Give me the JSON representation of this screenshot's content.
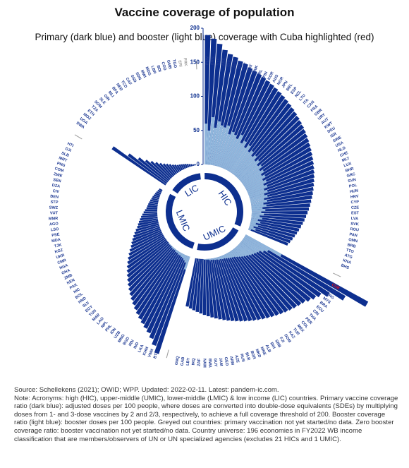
{
  "chart_data": {
    "type": "bar",
    "title": "Vaccine coverage of population",
    "subtitle": "Primary (dark blue) and booster (light blue) coverage with Cuba highlighted (red)",
    "ylim": [
      0,
      200
    ],
    "yticks": [
      "0",
      "50",
      "100",
      "150",
      "200"
    ],
    "colors": {
      "primary": "#0d2f8f",
      "booster": "#8fb6dc",
      "highlight": "#e8101a",
      "label": "#1f3a93",
      "grey": "#9a9a9a",
      "ring": "#0d2f8f"
    },
    "groups": [
      {
        "name": "HIC",
        "countries": [
          "PLW",
          "BRN",
          "SYC",
          "ARE",
          "CHL",
          "SGP",
          "ISL",
          "PRT",
          "QAT",
          "DNK",
          "IRL",
          "FIN",
          "KOR",
          "AUS",
          "NOR",
          "JPN",
          "BEL",
          "ESP",
          "NZL",
          "LTU",
          "ITA",
          "CAN",
          "FRA",
          "GBR",
          "URY",
          "AUT",
          "KWT",
          "DEU",
          "ISR",
          "SWE",
          "USA",
          "NLD",
          "CHE",
          "MLT",
          "LUX",
          "BHR",
          "GRC",
          "SVN",
          "POL",
          "HUN",
          "HRV",
          "CYP",
          "CZE",
          "EST",
          "LVA",
          "SVK",
          "ROU",
          "PAN",
          "OMN",
          "BRB",
          "TTO",
          "ATG",
          "KNA",
          "BHS"
        ]
      },
      {
        "name": "UMIC",
        "countries": [
          "CUB",
          "CHN",
          "ARG",
          "MYS",
          "BRA",
          "ECU",
          "CRI",
          "THA",
          "PER",
          "COL",
          "MEX",
          "TUR",
          "KAZ",
          "DOM",
          "FJI",
          "SRB",
          "BIH",
          "ALB",
          "MNE",
          "MKD",
          "BGR",
          "BLR",
          "RUS",
          "AZE",
          "ARM",
          "GEO",
          "JAM",
          "GUY",
          "BWA",
          "NAM",
          "ZAF",
          "IRQ",
          "LBY",
          "GAB",
          "GNQ"
        ]
      },
      {
        "name": "LMIC",
        "countries": [
          "BTN",
          "VNM",
          "KHM",
          "LKA",
          "IND",
          "IRN",
          "BGD",
          "MNG",
          "UZB",
          "IDN",
          "PHL",
          "NPL",
          "LAO",
          "MAR",
          "TUN",
          "EGY",
          "SLV",
          "HND",
          "BOL",
          "NIC",
          "PAK",
          "KEN",
          "ZMB",
          "GHA",
          "NGA",
          "CMR",
          "UKR",
          "KGZ",
          "TJK",
          "MDA",
          "PSE",
          "LSO",
          "AGO",
          "MMR",
          "VUT",
          "SWZ",
          "STP",
          "BEN",
          "CIV",
          "DZA",
          "SEN",
          "ZWE",
          "COM",
          "PNG",
          "MRT",
          "SLB",
          "DJI",
          "HTI"
        ]
      },
      {
        "name": "LIC",
        "countries": [
          "RWA",
          "UGA",
          "MOZ",
          "ETH",
          "TZA",
          "SOM",
          "SLE",
          "GIN",
          "MLI",
          "BFA",
          "NER",
          "TCD",
          "CAF",
          "SSD",
          "SDN",
          "MWI",
          "MDG",
          "LBR",
          "BDI",
          "COD",
          "GMB",
          "TGO",
          "ERI",
          "PRK"
        ]
      }
    ],
    "primary": {
      "HIC": [
        190,
        185,
        178,
        170,
        165,
        162,
        158,
        156,
        152,
        150,
        148,
        146,
        144,
        142,
        140,
        138,
        136,
        134,
        132,
        130,
        128,
        126,
        124,
        122,
        120,
        118,
        116,
        114,
        112,
        110,
        108,
        106,
        104,
        102,
        100,
        98,
        96,
        94,
        92,
        90,
        88,
        86,
        84,
        82,
        80,
        78,
        76,
        74,
        72,
        70,
        68,
        66,
        64,
        62
      ],
      "UMIC": [
        205,
        172,
        150,
        140,
        136,
        132,
        128,
        126,
        124,
        122,
        120,
        118,
        116,
        114,
        112,
        110,
        108,
        106,
        104,
        102,
        100,
        98,
        96,
        94,
        92,
        90,
        88,
        86,
        84,
        82,
        80,
        78,
        76,
        74,
        72
      ],
      "LMIC": [
        150,
        140,
        132,
        126,
        122,
        118,
        114,
        110,
        106,
        102,
        98,
        94,
        90,
        86,
        82,
        78,
        74,
        70,
        66,
        62,
        58,
        54,
        50,
        47,
        44,
        41,
        38,
        35,
        32,
        30,
        28,
        26,
        24,
        22,
        20,
        18,
        16,
        15,
        14,
        13,
        12,
        11,
        10,
        9,
        8,
        7,
        6,
        5
      ],
      "LIC": [
        95,
        70,
        55,
        45,
        38,
        32,
        27,
        23,
        20,
        17,
        14,
        12,
        10,
        9,
        8,
        7,
        6,
        5,
        4,
        3,
        2,
        2,
        0,
        0
      ]
    },
    "booster": {
      "HIC": [
        60,
        50,
        70,
        55,
        65,
        60,
        58,
        62,
        50,
        55,
        52,
        48,
        56,
        45,
        50,
        42,
        48,
        40,
        44,
        38,
        42,
        36,
        40,
        34,
        38,
        32,
        36,
        30,
        34,
        28,
        32,
        26,
        30,
        24,
        28,
        22,
        26,
        20,
        24,
        18,
        22,
        16,
        20,
        14,
        18,
        12,
        16,
        10,
        14,
        8,
        12,
        6,
        10,
        4
      ],
      "UMIC": [
        60,
        40,
        35,
        30,
        28,
        26,
        24,
        22,
        20,
        18,
        16,
        14,
        12,
        10,
        9,
        8,
        7,
        6,
        5,
        5,
        4,
        4,
        3,
        3,
        2,
        2,
        2,
        1,
        1,
        1,
        0,
        0,
        0,
        0,
        0
      ],
      "LMIC": [
        20,
        10,
        8,
        6,
        5,
        4,
        4,
        3,
        3,
        2,
        2,
        2,
        1,
        1,
        1,
        0,
        0,
        0,
        0,
        0,
        0,
        0,
        0,
        0,
        0,
        0,
        0,
        0,
        0,
        0,
        0,
        0,
        0,
        0,
        0,
        0,
        0,
        0,
        0,
        0,
        0,
        0,
        0,
        0,
        0,
        0,
        0,
        0
      ],
      "LIC": [
        0,
        0,
        0,
        0,
        0,
        0,
        0,
        0,
        0,
        0,
        0,
        0,
        0,
        0,
        0,
        0,
        0,
        0,
        0,
        0,
        0,
        0,
        0,
        0
      ]
    },
    "highlight": "CUB",
    "greyed": [
      "ERI",
      "PRK"
    ]
  },
  "note": {
    "source": "Source: Schellekens (2021); OWID; WPP. Updated: 2022-02-11. Latest: pandem-ic.com.",
    "text": "Note: Acronyms: high (HIC), upper-middle (UMIC), lower-middle (LMIC) & low income (LIC) countries. Primary vaccine coverage ratio (dark blue): adjusted doses per 100 people, where doses are converted into double-dose equivalents (SDEs) by multiplying doses from 1- and 3-dose vaccines by 2 and 2/3, respectively, to achieve a full coverage threshold of 200. Booster coverage ratio (light blue): booster doses per 100 people. Greyed out countries: primary vaccination not yet started/no data. Zero booster coverage ratio: booster vaccination not yet started/no data. Country universe: 196 economies in FY2022 WB income classification that are members/observers of UN or UN specialized agencies (excludes 21 HICs and 1 UMIC)."
  }
}
